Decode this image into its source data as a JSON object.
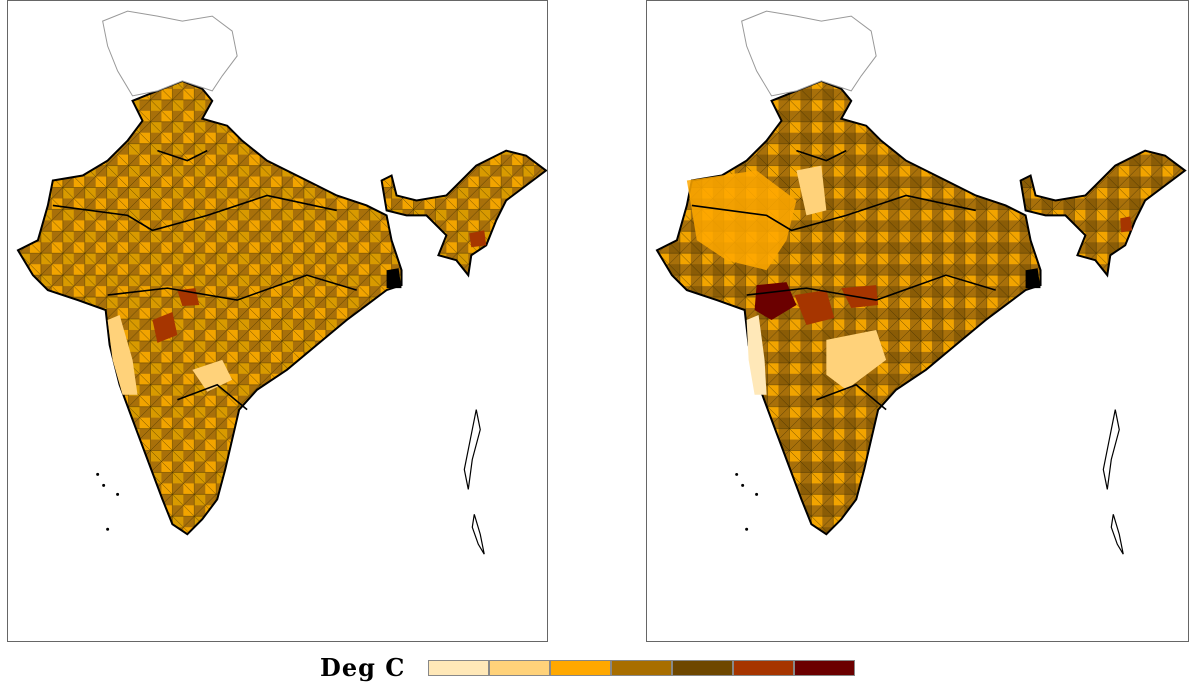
{
  "legend": {
    "title": "Deg C",
    "swatches": [
      "#ffe8b8",
      "#ffd27a",
      "#ffa800",
      "#a86e00",
      "#6e4700",
      "#a63500",
      "#6b0000"
    ]
  },
  "maps": [
    {
      "name": "left-map",
      "palette": [
        "#d89a00",
        "#f2a400",
        "#a8700a",
        "#8a5c06",
        "#ffd27a"
      ]
    },
    {
      "name": "right-map",
      "palette": [
        "#a8700a",
        "#8a5c06",
        "#f2a400",
        "#ffcf70",
        "#6e4700"
      ]
    }
  ],
  "colors": {
    "border": "#000000",
    "frame": "#666666",
    "kashmir_fill": "#ffffff",
    "hotspot_dark": "#6b0000",
    "hotspot_mid": "#a63500"
  }
}
